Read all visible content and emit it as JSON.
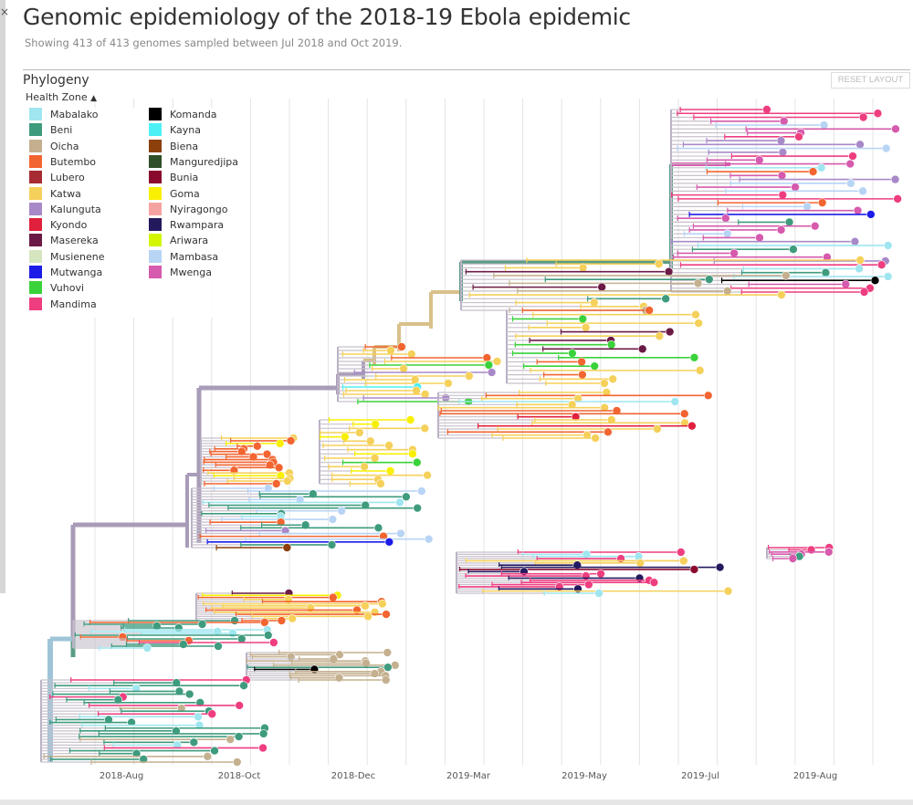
{
  "header": {
    "title": "Genomic epidemiology of the 2018-19 Ebola epidemic",
    "subtitle": "Showing 413 of 413 genomes sampled between Jul 2018 and Oct 2019."
  },
  "panel": {
    "title": "Phylogeny",
    "reset_label": "RESET LAYOUT",
    "legend_title": "Health Zone",
    "legend_toggle_icon": "chevron-up-icon"
  },
  "legend": [
    {
      "label": "Mabalako",
      "color": "#9fe6f0"
    },
    {
      "label": "Beni",
      "color": "#3f9b7e"
    },
    {
      "label": "Oicha",
      "color": "#c4b08f"
    },
    {
      "label": "Butembo",
      "color": "#f26430"
    },
    {
      "label": "Lubero",
      "color": "#a72b33"
    },
    {
      "label": "Katwa",
      "color": "#f5d05a"
    },
    {
      "label": "Kalunguta",
      "color": "#a889c8"
    },
    {
      "label": "Kyondo",
      "color": "#e0203c"
    },
    {
      "label": "Masereka",
      "color": "#6b1a45"
    },
    {
      "label": "Musienene",
      "color": "#d5e5c0"
    },
    {
      "label": "Mutwanga",
      "color": "#1c1ce8"
    },
    {
      "label": "Vuhovi",
      "color": "#3ad23a"
    },
    {
      "label": "Mandima",
      "color": "#ee3e80"
    },
    {
      "label": "Komanda",
      "color": "#000000"
    },
    {
      "label": "Kayna",
      "color": "#4df0f5"
    },
    {
      "label": "Biena",
      "color": "#8b3f0a"
    },
    {
      "label": "Manguredjipa",
      "color": "#2f4f28"
    },
    {
      "label": "Bunia",
      "color": "#8a0a2e"
    },
    {
      "label": "Goma",
      "color": "#f8f000"
    },
    {
      "label": "Nyiragongo",
      "color": "#f5a3a0"
    },
    {
      "label": "Rwampara",
      "color": "#231a5e"
    },
    {
      "label": "Ariwara",
      "color": "#d4f500"
    },
    {
      "label": "Mambasa",
      "color": "#b8d4f5"
    },
    {
      "label": "Mwenga",
      "color": "#d65aad"
    }
  ],
  "chart_data": {
    "type": "phylogeny",
    "x_axis": "time",
    "tick_labels": [
      "2018-Aug",
      "2018-Oct",
      "2018-Dec",
      "2019-Mar",
      "2019-May",
      "2019-Jul",
      "2019-Aug"
    ],
    "color_by": "Health Zone",
    "tips_shown": 413,
    "grid": true,
    "backbone_color": "#a89cb8"
  }
}
